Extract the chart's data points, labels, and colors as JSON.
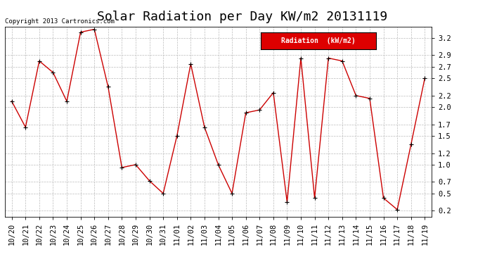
{
  "title": "Solar Radiation per Day KW/m2 20131119",
  "copyright_text": "Copyright 2013 Cartronics.com",
  "legend_label": "Radiation  (kW/m2)",
  "dates": [
    "10/20",
    "10/21",
    "10/22",
    "10/23",
    "10/24",
    "10/25",
    "10/26",
    "10/27",
    "10/28",
    "10/29",
    "10/30",
    "10/31",
    "11/01",
    "11/02",
    "11/03",
    "11/04",
    "11/05",
    "11/06",
    "11/07",
    "11/08",
    "11/09",
    "11/10",
    "11/11",
    "11/12",
    "11/13",
    "11/14",
    "11/15",
    "11/16",
    "11/17",
    "11/18",
    "11/19"
  ],
  "values": [
    2.1,
    1.65,
    2.8,
    2.6,
    2.1,
    3.3,
    3.35,
    2.35,
    0.95,
    1.0,
    0.72,
    0.5,
    1.5,
    2.75,
    1.65,
    1.0,
    0.5,
    1.9,
    1.95,
    2.25,
    0.35,
    2.85,
    0.42,
    2.85,
    2.8,
    2.2,
    2.15,
    0.42,
    0.22,
    1.35,
    2.5
  ],
  "line_color": "#cc0000",
  "marker_color": "#000000",
  "background_color": "#ffffff",
  "grid_color": "#bbbbbb",
  "ylim": [
    0.1,
    3.4
  ],
  "yticks": [
    0.2,
    0.5,
    0.7,
    1.0,
    1.2,
    1.5,
    1.7,
    2.0,
    2.2,
    2.5,
    2.7,
    2.9,
    3.2
  ],
  "legend_bg": "#dd0000",
  "legend_text_color": "#ffffff",
  "title_fontsize": 13,
  "tick_fontsize": 7.5,
  "copyright_fontsize": 6.5,
  "legend_fontsize": 7
}
